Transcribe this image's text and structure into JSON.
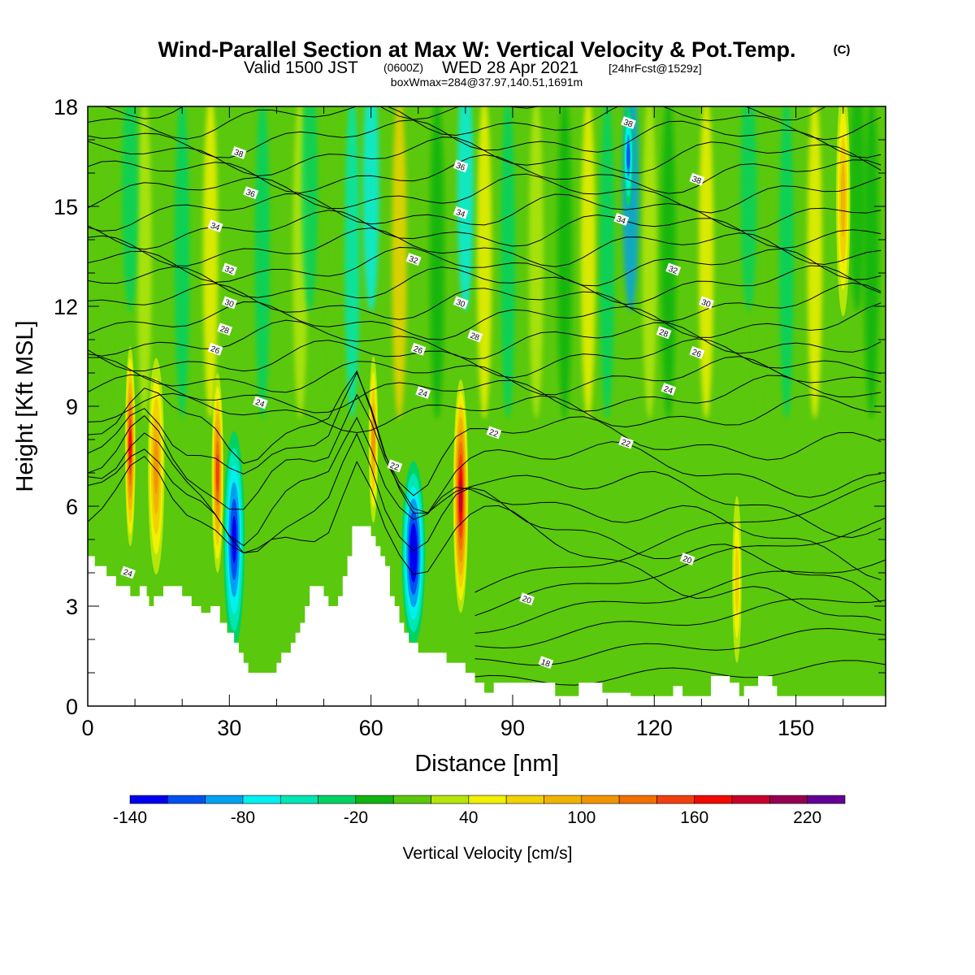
{
  "titles": {
    "main": "Wind-Parallel Section at Max W: Vertical Velocity & Pot.Temp.",
    "copyright": "(C)",
    "valid_prefix": "Valid 1500 JST",
    "valid_utc": "(0600Z)",
    "valid_date": "WED 28 Apr 2021",
    "forecast": "[24hrFcst@1529z]",
    "boxwmax": "boxWmax=284@37.97,140.51,1691m"
  },
  "colors": {
    "ground": "#ffffff",
    "contour": "#000000",
    "background_field": "#5ac80c"
  },
  "chart_data": {
    "type": "heatmap",
    "xlabel": "Distance [nm]",
    "ylabel": "Height [Kft MSL]",
    "xlim": [
      0,
      169
    ],
    "ylim": [
      0,
      18
    ],
    "x_ticks": [
      0,
      30,
      60,
      90,
      120,
      150
    ],
    "y_ticks": [
      0,
      3,
      6,
      9,
      12,
      15,
      18
    ],
    "x_tick_labels": [
      "0",
      "30",
      "60",
      "90",
      "120",
      "150"
    ],
    "y_tick_labels": [
      "0",
      "3",
      "6",
      "9",
      "12",
      "15",
      "18"
    ],
    "colorbar": {
      "title": "Vertical Velocity [cm/s]",
      "bounds": [
        -140,
        -120,
        -100,
        -80,
        -60,
        -40,
        -20,
        0,
        20,
        40,
        60,
        80,
        100,
        120,
        140,
        160,
        180,
        200,
        220,
        240
      ],
      "colors": [
        "#0000f0",
        "#0050f0",
        "#00a0f0",
        "#00f0f0",
        "#00e6b4",
        "#00d264",
        "#10b410",
        "#5ac80c",
        "#b4e60a",
        "#f0f000",
        "#f0d200",
        "#f0b400",
        "#f09600",
        "#f07000",
        "#f04010",
        "#f00a00",
        "#c8002c",
        "#960050",
        "#640096"
      ],
      "labels": [
        "-140",
        "-80",
        "-20",
        "40",
        "100",
        "160",
        "220"
      ],
      "label_values": [
        -140,
        -80,
        -20,
        40,
        100,
        160,
        220
      ]
    },
    "terrain_height_kft": [
      [
        0,
        4.5
      ],
      [
        1.5,
        4.5
      ],
      [
        1.5,
        4.2
      ],
      [
        4,
        4.2
      ],
      [
        4,
        3.9
      ],
      [
        6,
        3.9
      ],
      [
        6,
        3.6
      ],
      [
        9,
        3.6
      ],
      [
        9,
        3.3
      ],
      [
        11,
        3.3
      ],
      [
        11,
        3.6
      ],
      [
        12.5,
        3.6
      ],
      [
        12.5,
        3.3
      ],
      [
        13,
        3.3
      ],
      [
        13,
        3.0
      ],
      [
        14,
        3.0
      ],
      [
        14,
        3.3
      ],
      [
        16,
        3.3
      ],
      [
        16,
        3.6
      ],
      [
        20,
        3.6
      ],
      [
        20,
        3.3
      ],
      [
        22,
        3.3
      ],
      [
        22,
        3.0
      ],
      [
        24,
        3.0
      ],
      [
        24,
        2.8
      ],
      [
        26,
        2.8
      ],
      [
        26,
        3.0
      ],
      [
        28,
        3.0
      ],
      [
        28,
        2.5
      ],
      [
        29.5,
        2.5
      ],
      [
        29.5,
        2.2
      ],
      [
        31,
        2.2
      ],
      [
        31,
        1.9
      ],
      [
        32,
        1.9
      ],
      [
        32,
        1.6
      ],
      [
        33,
        1.6
      ],
      [
        33,
        1.3
      ],
      [
        34,
        1.3
      ],
      [
        34,
        1.0
      ],
      [
        40,
        1.0
      ],
      [
        40,
        1.3
      ],
      [
        41,
        1.3
      ],
      [
        41,
        1.6
      ],
      [
        43,
        1.6
      ],
      [
        43,
        1.9
      ],
      [
        44,
        1.9
      ],
      [
        44,
        2.2
      ],
      [
        45,
        2.2
      ],
      [
        45,
        2.5
      ],
      [
        46,
        2.5
      ],
      [
        46,
        3.0
      ],
      [
        47,
        3.0
      ],
      [
        47,
        3.6
      ],
      [
        50,
        3.6
      ],
      [
        50,
        3.3
      ],
      [
        51,
        3.3
      ],
      [
        51,
        3.0
      ],
      [
        53,
        3.0
      ],
      [
        53,
        3.3
      ],
      [
        54,
        3.3
      ],
      [
        54,
        3.9
      ],
      [
        55,
        3.9
      ],
      [
        55,
        4.5
      ],
      [
        56,
        4.5
      ],
      [
        56,
        5.4
      ],
      [
        60,
        5.4
      ],
      [
        60,
        5.1
      ],
      [
        61,
        5.1
      ],
      [
        61,
        4.8
      ],
      [
        62,
        4.8
      ],
      [
        62,
        4.5
      ],
      [
        63,
        4.5
      ],
      [
        63,
        4.2
      ],
      [
        64,
        4.2
      ],
      [
        64,
        3.3
      ],
      [
        65,
        3.3
      ],
      [
        65,
        3.0
      ],
      [
        66,
        3.0
      ],
      [
        66,
        2.5
      ],
      [
        67,
        2.5
      ],
      [
        67,
        2.2
      ],
      [
        68,
        2.2
      ],
      [
        68,
        1.9
      ],
      [
        70,
        1.9
      ],
      [
        70,
        1.6
      ],
      [
        74,
        1.6
      ],
      [
        74,
        1.6
      ],
      [
        76,
        1.6
      ],
      [
        76,
        1.3
      ],
      [
        80,
        1.3
      ],
      [
        80,
        1.0
      ],
      [
        82,
        1.0
      ],
      [
        82,
        0.7
      ],
      [
        84,
        0.7
      ],
      [
        84,
        0.4
      ],
      [
        86,
        0.4
      ],
      [
        86,
        0.7
      ],
      [
        99,
        0.7
      ],
      [
        99,
        0.3
      ],
      [
        104,
        0.3
      ],
      [
        104,
        0.7
      ],
      [
        109,
        0.7
      ],
      [
        109,
        0.4
      ],
      [
        115,
        0.4
      ],
      [
        115,
        0.3
      ],
      [
        124,
        0.3
      ],
      [
        124,
        0.6
      ],
      [
        126,
        0.6
      ],
      [
        126,
        0.3
      ],
      [
        132,
        0.3
      ],
      [
        132,
        0.9
      ],
      [
        136,
        0.9
      ],
      [
        136,
        0.7
      ],
      [
        138,
        0.7
      ],
      [
        138,
        0.3
      ],
      [
        139,
        0.3
      ],
      [
        139,
        0.6
      ],
      [
        142,
        0.6
      ],
      [
        142,
        0.9
      ],
      [
        145,
        0.9
      ],
      [
        145,
        0.6
      ],
      [
        146,
        0.6
      ],
      [
        146,
        0.3
      ],
      [
        169,
        0.3
      ]
    ],
    "velocity_cells_cm_s": [
      {
        "x": 9,
        "y": 7.8,
        "w": 2.2,
        "h": 6,
        "value": 165
      },
      {
        "x": 14.5,
        "y": 7.2,
        "w": 3.5,
        "h": 6.5,
        "value": 110
      },
      {
        "x": 27.5,
        "y": 7.0,
        "w": 2.5,
        "h": 6,
        "value": 155
      },
      {
        "x": 31,
        "y": 5.0,
        "w": 4.5,
        "h": 6.5,
        "value": -130
      },
      {
        "x": 60.5,
        "y": 8.0,
        "w": 2.0,
        "h": 5,
        "value": 110
      },
      {
        "x": 69,
        "y": 4.6,
        "w": 5,
        "h": 5.5,
        "value": -140
      },
      {
        "x": 79,
        "y": 6.3,
        "w": 3.2,
        "h": 7,
        "value": 180
      },
      {
        "x": 114.5,
        "y": 16.5,
        "w": 2,
        "h": 3,
        "value": -110
      },
      {
        "x": 137.5,
        "y": 3.8,
        "w": 2,
        "h": 5,
        "value": 70
      },
      {
        "x": 160,
        "y": 15.2,
        "w": 3,
        "h": 7,
        "value": 90
      }
    ],
    "contour_labels": [
      {
        "text": "38",
        "x": 32,
        "y": 16.6
      },
      {
        "text": "36",
        "x": 34.5,
        "y": 15.4
      },
      {
        "text": "34",
        "x": 27,
        "y": 14.4
      },
      {
        "text": "32",
        "x": 30,
        "y": 13.1
      },
      {
        "text": "30",
        "x": 30,
        "y": 12.1
      },
      {
        "text": "28",
        "x": 29,
        "y": 11.3
      },
      {
        "text": "26",
        "x": 27,
        "y": 10.7
      },
      {
        "text": "24",
        "x": 36.5,
        "y": 9.1
      },
      {
        "text": "24",
        "x": 8.5,
        "y": 4.0
      },
      {
        "text": "38",
        "x": 114.5,
        "y": 17.5
      },
      {
        "text": "36",
        "x": 79,
        "y": 16.2
      },
      {
        "text": "34",
        "x": 79,
        "y": 14.8
      },
      {
        "text": "32",
        "x": 69,
        "y": 13.4
      },
      {
        "text": "30",
        "x": 79,
        "y": 12.1
      },
      {
        "text": "28",
        "x": 82,
        "y": 11.1
      },
      {
        "text": "26",
        "x": 70,
        "y": 10.7
      },
      {
        "text": "24",
        "x": 71,
        "y": 9.4
      },
      {
        "text": "22",
        "x": 86,
        "y": 8.2
      },
      {
        "text": "22",
        "x": 65,
        "y": 7.2
      },
      {
        "text": "38",
        "x": 129,
        "y": 15.8
      },
      {
        "text": "34",
        "x": 113,
        "y": 14.6
      },
      {
        "text": "32",
        "x": 124,
        "y": 13.1
      },
      {
        "text": "30",
        "x": 131,
        "y": 12.1
      },
      {
        "text": "28",
        "x": 122,
        "y": 11.2
      },
      {
        "text": "26",
        "x": 129,
        "y": 10.6
      },
      {
        "text": "24",
        "x": 123,
        "y": 9.5
      },
      {
        "text": "22",
        "x": 114,
        "y": 7.9
      },
      {
        "text": "20",
        "x": 127,
        "y": 4.4
      },
      {
        "text": "20",
        "x": 93,
        "y": 3.2
      },
      {
        "text": "18",
        "x": 97,
        "y": 1.3
      }
    ]
  }
}
